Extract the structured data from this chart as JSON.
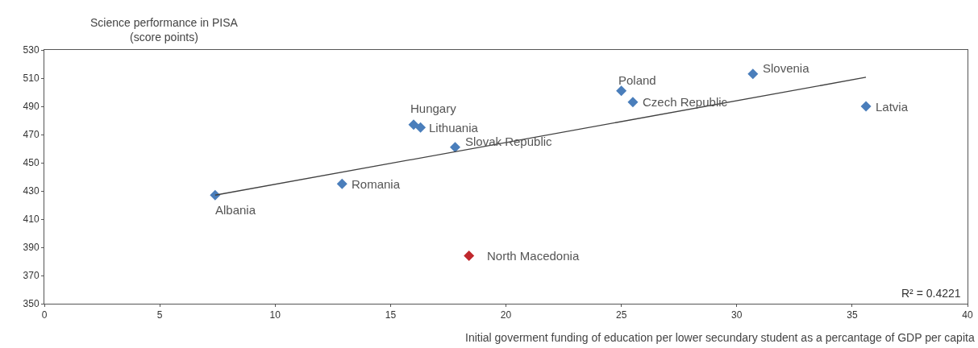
{
  "chart_data": {
    "type": "scatter",
    "ylabel": "Science performance in PISA\n(score points)",
    "xlabel": "Initial goverment funding of education per lower secundary student as a percantage of GDP per capita",
    "xlim": [
      0,
      40
    ],
    "xticks": [
      0,
      5,
      10,
      15,
      20,
      25,
      30,
      35,
      40
    ],
    "ylim": [
      350,
      530
    ],
    "yticks": [
      350,
      370,
      390,
      410,
      430,
      450,
      470,
      490,
      510,
      530
    ],
    "grid": false,
    "marker": "diamond",
    "series": [
      {
        "x": [
          7.4,
          12.9,
          16.0,
          16.3,
          17.8,
          18.4,
          25.0,
          25.5,
          30.7,
          35.6
        ],
        "values": [
          427,
          435,
          477,
          475,
          461,
          384,
          501,
          493,
          513,
          490
        ],
        "colors": [
          "#4a7ebb",
          "#4a7ebb",
          "#4a7ebb",
          "#4a7ebb",
          "#4a7ebb",
          "#c0282d",
          "#4a7ebb",
          "#4a7ebb",
          "#4a7ebb",
          "#4a7ebb"
        ]
      },
      {
        "type": "line",
        "x": [
          7.4,
          35.6
        ],
        "values": [
          427,
          510.6
        ],
        "color": "#404040",
        "marker": "none"
      }
    ],
    "annotations": [
      {
        "text": "Albania",
        "x": 7.4,
        "y": 427
      },
      {
        "text": "Romania",
        "x": 12.9,
        "y": 435
      },
      {
        "text": "Hungary",
        "x": 16.0,
        "y": 477
      },
      {
        "text": "Lithuania",
        "x": 16.3,
        "y": 475
      },
      {
        "text": "Slovak Republic",
        "x": 17.8,
        "y": 461
      },
      {
        "text": "North Macedonia",
        "x": 18.4,
        "y": 384
      },
      {
        "text": "Poland",
        "x": 25.0,
        "y": 501
      },
      {
        "text": "Czech Republic",
        "x": 25.5,
        "y": 493
      },
      {
        "text": "Slovenia",
        "x": 30.7,
        "y": 513
      },
      {
        "text": "Latvia",
        "x": 35.6,
        "y": 490
      },
      "R² = 0.4221"
    ]
  }
}
